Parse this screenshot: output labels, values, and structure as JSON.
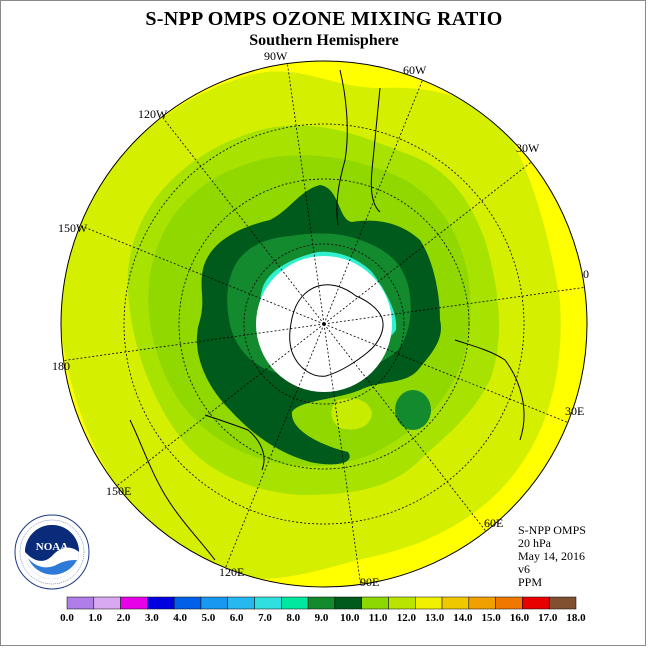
{
  "title": "S-NPP OMPS OZONE MIXING RATIO",
  "subtitle": "Southern Hemisphere",
  "longitude_labels": [
    "90W",
    "60W",
    "30W",
    "0",
    "30E",
    "60E",
    "90E",
    "120E",
    "150E",
    "180",
    "150W",
    "120W"
  ],
  "info": {
    "instrument": "S-NPP OMPS",
    "pressure": "20 hPa",
    "date": "May 14, 2016",
    "version": "v6",
    "units": "PPM"
  },
  "logo": {
    "text": "NOAA",
    "ring_text": "NATIONAL OCEANIC AND ATMOSPHERIC ADMINISTRATION · U.S. DEPARTMENT OF COMMERCE",
    "icon": "noaa-logo"
  },
  "colorbar": {
    "ticks": [
      "0.0",
      "1.0",
      "2.0",
      "3.0",
      "4.0",
      "5.0",
      "6.0",
      "7.0",
      "8.0",
      "9.0",
      "10.0",
      "11.0",
      "12.0",
      "13.0",
      "14.0",
      "15.0",
      "16.0",
      "17.0",
      "18.0"
    ],
    "colors": [
      "#b07ee8",
      "#d8a8f0",
      "#e800e8",
      "#0000e0",
      "#0060e8",
      "#1898f0",
      "#28b8f0",
      "#30e0e0",
      "#00e8a0",
      "#138a2e",
      "#005a1c",
      "#8cd800",
      "#b8e400",
      "#f0f000",
      "#f0c800",
      "#f0a000",
      "#f07800",
      "#e80000",
      "#805030"
    ]
  },
  "map_colors": {
    "outer_yellow": "#ffff00",
    "field_11_12": "#d4f000",
    "field_10_11": "#a8e200",
    "field_light_green": "#90d800",
    "field_9_10": "#138a2e",
    "field_dark": "#005a1c",
    "field_cyan": "#30f0d0",
    "polar_gap": "#ffffff"
  }
}
